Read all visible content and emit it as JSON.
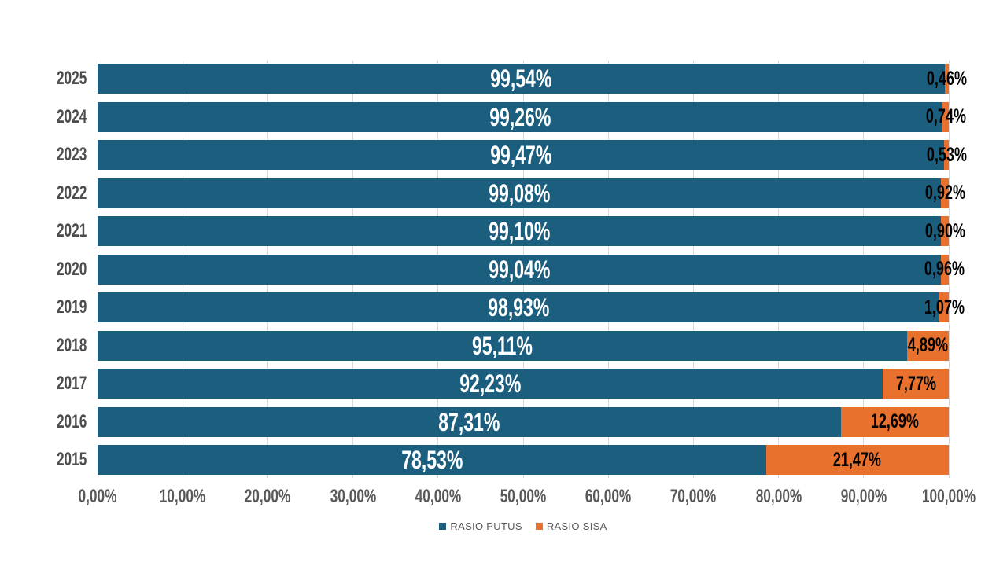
{
  "page": {
    "background": "#FFFFFF"
  },
  "chart_data": {
    "type": "bar",
    "orientation": "horizontal",
    "stacked": true,
    "title": "",
    "xlabel": "",
    "ylabel": "",
    "categories": [
      "2025",
      "2024",
      "2023",
      "2022",
      "2021",
      "2020",
      "2019",
      "2018",
      "2017",
      "2016",
      "2015"
    ],
    "series": [
      {
        "name": "RASIO PUTUS",
        "color": "#1B5E7E",
        "label_color": "#FFFFFF",
        "values": [
          99.54,
          99.26,
          99.47,
          99.08,
          99.1,
          99.04,
          98.93,
          95.11,
          92.23,
          87.31,
          78.53
        ],
        "labels": [
          "99,54%",
          "99,26%",
          "99,47%",
          "99,08%",
          "99,10%",
          "99,04%",
          "98,93%",
          "95,11%",
          "92,23%",
          "87,31%",
          "78,53%"
        ]
      },
      {
        "name": "RASIO SISA",
        "color": "#E8722D",
        "label_color": "#000000",
        "values": [
          0.46,
          0.74,
          0.53,
          0.92,
          0.9,
          0.96,
          1.07,
          4.89,
          7.77,
          12.69,
          21.47
        ],
        "labels": [
          "0,46%",
          "0,74%",
          "0,53%",
          "0,92%",
          "0,90%",
          "0,96%",
          "1,07%",
          "4,89%",
          "7,77%",
          "12,69%",
          "21,47%"
        ]
      }
    ],
    "x_ticks": [
      "0,00%",
      "10,00%",
      "20,00%",
      "30,00%",
      "40,00%",
      "50,00%",
      "60,00%",
      "70,00%",
      "80,00%",
      "90,00%",
      "100,00%"
    ],
    "xlim": [
      0,
      100
    ],
    "grid": true,
    "gridline_color": "#D9D9D9",
    "tick_color": "#595959",
    "category_color": "#4D4D4D",
    "legend_position": "bottom"
  },
  "legend": {
    "items": [
      {
        "label": "RASIO PUTUS",
        "color": "#1B5E7E"
      },
      {
        "label": "RASIO SISA",
        "color": "#E8722D"
      }
    ]
  }
}
